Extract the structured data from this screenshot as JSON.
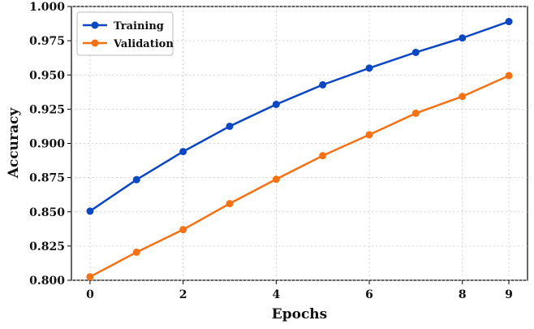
{
  "chart_data": {
    "type": "line",
    "title": "",
    "xlabel": "Epochs",
    "ylabel": "Accuracy",
    "x": [
      0,
      1,
      2,
      3,
      4,
      5,
      6,
      7,
      8,
      9
    ],
    "xticks": [
      0,
      2,
      4,
      6,
      8,
      9
    ],
    "xlim": [
      -0.4,
      9.4
    ],
    "ylim": [
      0.8,
      1.0
    ],
    "yticks": [
      0.8,
      0.825,
      0.85,
      0.875,
      0.9,
      0.925,
      0.95,
      0.975,
      1.0
    ],
    "grid": true,
    "legend_position": "top-left",
    "series": [
      {
        "name": "Training",
        "color": "#0b47c3",
        "values": [
          0.8505,
          0.8735,
          0.894,
          0.9125,
          0.9285,
          0.9428,
          0.955,
          0.9665,
          0.977,
          0.989
        ]
      },
      {
        "name": "Validation",
        "color": "#f57214",
        "values": [
          0.8025,
          0.8205,
          0.837,
          0.856,
          0.8738,
          0.891,
          0.9063,
          0.922,
          0.9343,
          0.9495
        ]
      }
    ]
  }
}
